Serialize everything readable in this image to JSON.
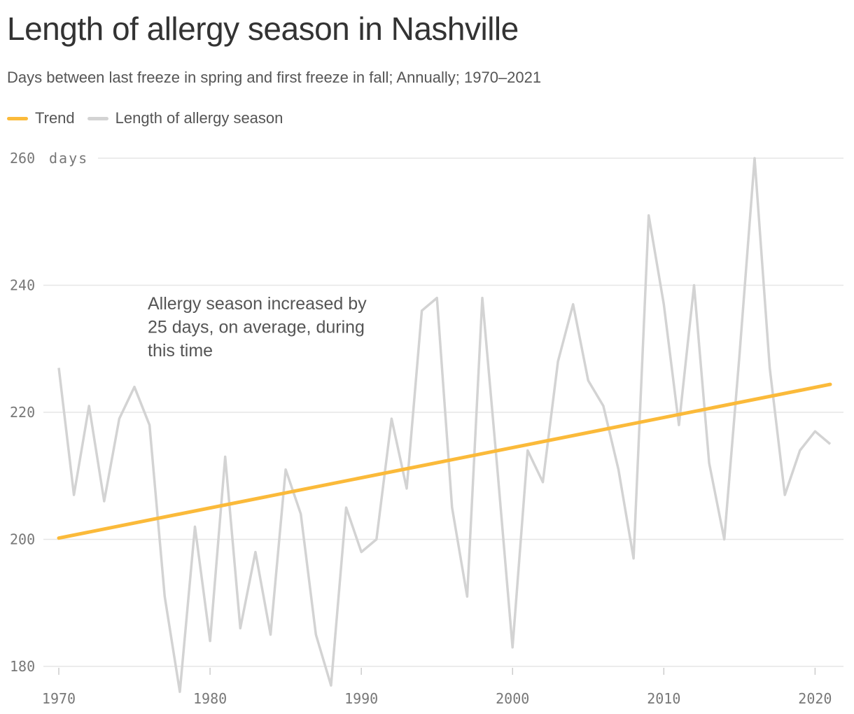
{
  "title": "Length of allergy season in Nashville",
  "subtitle": "Days between last freeze in spring and first freeze in fall; Annually; 1970–2021",
  "colors": {
    "trend": "#FBBA3A",
    "series": "#D3D3D3",
    "grid": "#E6E6E6",
    "text": "#555555"
  },
  "legend": [
    {
      "label": "Trend",
      "color": "#FBBA3A"
    },
    {
      "label": "Length of allergy season",
      "color": "#D3D3D3"
    }
  ],
  "annotation": [
    "Allergy season increased by",
    "25 days, on average, during",
    "this time"
  ],
  "chart_data": {
    "type": "line",
    "title": "Length of allergy season in Nashville",
    "ylabel": "days",
    "ylim": [
      180,
      260
    ],
    "yticks": [
      260,
      240,
      220,
      200,
      180
    ],
    "xlim": [
      1970,
      2021
    ],
    "xticks": [
      1970,
      1980,
      1990,
      2000,
      2010,
      2020
    ],
    "grid": true,
    "legend_position": "top-left",
    "x": [
      1970,
      1971,
      1972,
      1973,
      1974,
      1975,
      1976,
      1977,
      1978,
      1979,
      1980,
      1981,
      1982,
      1983,
      1984,
      1985,
      1986,
      1987,
      1988,
      1989,
      1990,
      1991,
      1992,
      1993,
      1994,
      1995,
      1996,
      1997,
      1998,
      1999,
      2000,
      2001,
      2002,
      2003,
      2004,
      2005,
      2006,
      2007,
      2008,
      2009,
      2010,
      2011,
      2012,
      2013,
      2014,
      2015,
      2016,
      2017,
      2018,
      2019,
      2020,
      2021
    ],
    "series": [
      {
        "name": "Length of allergy season",
        "values": [
          227,
          207,
          221,
          206,
          219,
          224,
          218,
          191,
          176,
          202,
          184,
          213,
          186,
          198,
          185,
          211,
          204,
          185,
          177,
          205,
          198,
          200,
          219,
          208,
          236,
          238,
          205,
          191,
          238,
          211,
          183,
          214,
          209,
          228,
          237,
          225,
          221,
          211,
          197,
          251,
          237,
          218,
          240,
          212,
          200,
          229,
          260,
          227,
          207,
          214,
          217,
          215
        ]
      },
      {
        "name": "Trend",
        "x": [
          1970,
          2021
        ],
        "values": [
          200.2,
          224.4
        ]
      }
    ]
  }
}
